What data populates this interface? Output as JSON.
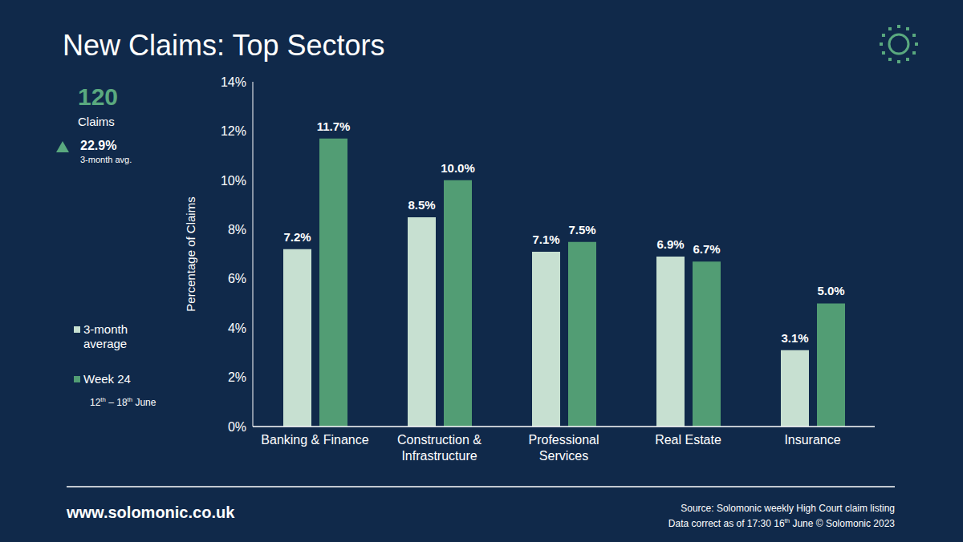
{
  "chart_data": {
    "type": "bar",
    "title": "New Claims: Top Sectors",
    "ylabel": "Percentage of Claims",
    "categories": [
      "Banking & Finance",
      "Construction & Infrastructure",
      "Professional Services",
      "Real Estate",
      "Insurance"
    ],
    "series": [
      {
        "name": "3-month average",
        "color": "#c7e0d1",
        "values": [
          7.2,
          8.5,
          7.1,
          6.9,
          3.1
        ],
        "value_labels": [
          "7.2%",
          "8.5%",
          "7.1%",
          "6.9%",
          "3.1%"
        ]
      },
      {
        "name": "Week 24",
        "color": "#529d74",
        "values": [
          11.7,
          10.0,
          7.5,
          6.7,
          5.0
        ],
        "value_labels": [
          "11.7%",
          "10.0%",
          "7.5%",
          "6.7%",
          "5.0%"
        ]
      }
    ],
    "ylim": [
      0,
      14
    ],
    "yticks": [
      {
        "value": 0,
        "label": "0%"
      },
      {
        "value": 2,
        "label": "2%"
      },
      {
        "value": 4,
        "label": "4%"
      },
      {
        "value": 6,
        "label": "6%"
      },
      {
        "value": 8,
        "label": "8%"
      },
      {
        "value": 10,
        "label": "10%"
      },
      {
        "value": 12,
        "label": "12%"
      },
      {
        "value": 14,
        "label": "14%"
      }
    ],
    "grid": false,
    "legend": "left",
    "data_labels": true,
    "annotations": [
      "120",
      "Claims",
      "22.9%",
      "3-month avg.",
      "12th – 18th June",
      "www.solomonic.co.uk",
      "Source: Solomonic weekly High Court claim listing",
      "Data correct as of 17:30 16th June © Solomonic 2023"
    ]
  }
}
